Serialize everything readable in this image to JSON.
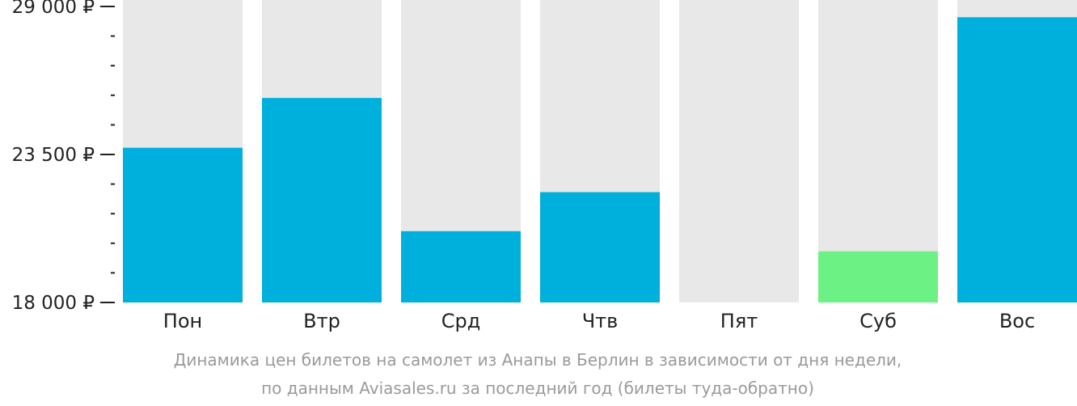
{
  "chart_data": {
    "type": "bar",
    "categories": [
      "Пон",
      "Втр",
      "Срд",
      "Чтв",
      "Пят",
      "Суб",
      "Вос"
    ],
    "values": [
      23750,
      25600,
      20650,
      22100,
      null,
      19900,
      28600
    ],
    "ylim": [
      18000,
      29000
    ],
    "y_tick_labels": [
      {
        "value": 29000,
        "label": "29 000 ₽"
      },
      {
        "value": 23500,
        "label": "23 500 ₽"
      },
      {
        "value": 18000,
        "label": "18 000 ₽"
      }
    ],
    "minor_ticks": [
      27900,
      26800,
      25700,
      24600,
      22400,
      21300,
      20200,
      19100
    ],
    "title": "",
    "xlabel": "",
    "ylabel": "",
    "grid": false,
    "highlight_index": 5,
    "colors": {
      "bar": "#00b0dc",
      "highlight": "#6cf284",
      "background": "#e8e8e8",
      "axis_text": "#222222",
      "caption": "#9a9a9a"
    }
  },
  "caption": {
    "line1": "Динамика цен билетов на самолет из Анапы в Берлин в зависимости от дня недели,",
    "line2": "по данным Aviasales.ru за последний год (билеты туда-обратно)"
  }
}
